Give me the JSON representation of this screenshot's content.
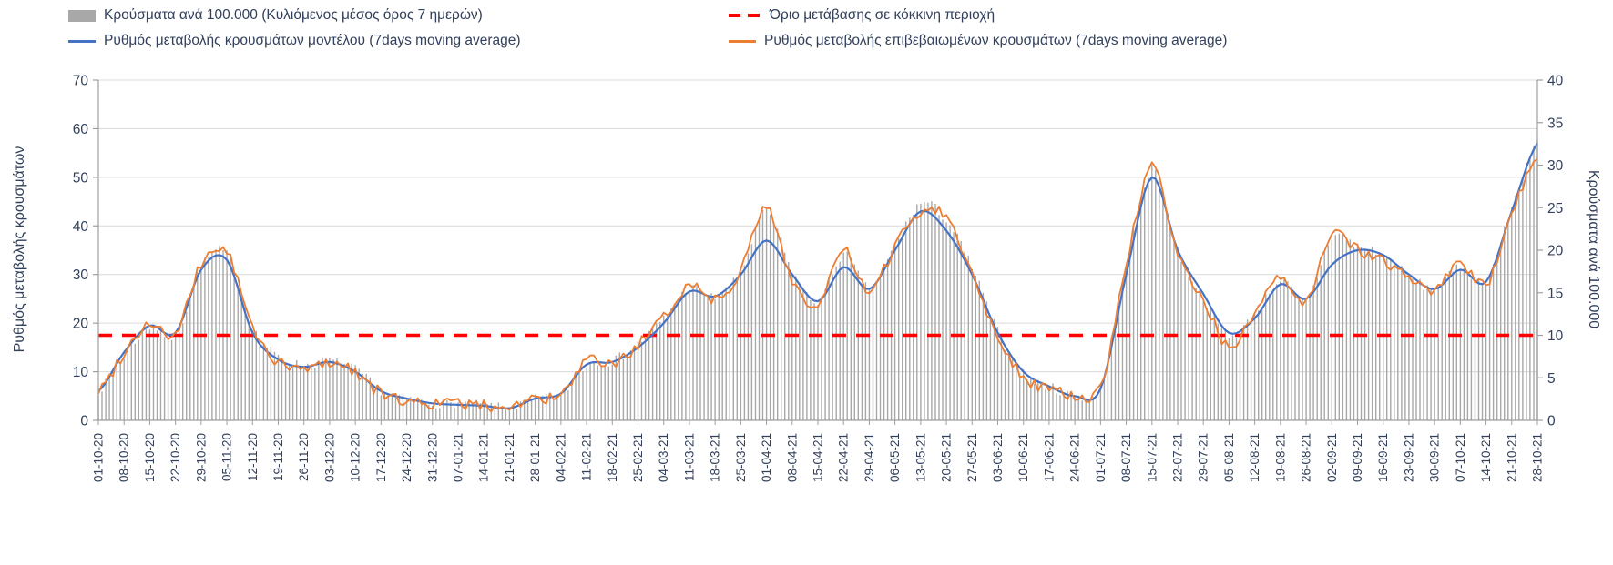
{
  "legend": {
    "cases": "Κρούσματα ανά 100.000 (Κυλιόμενος μέσος όρος 7 ημερών)",
    "threshold": "Όριο μετάβασης σε κόκκινη περιοχή",
    "model": "Ρυθμός μεταβολής κρουσμάτων μοντέλου (7days moving average)",
    "confirmed": "Ρυθμός μεταβολής επιβεβαιωμένων κρουσμάτων (7days moving average)"
  },
  "axes": {
    "left_title": "Ρυθμός μεταβολής κρουσμάτων",
    "right_title": "Κρούσματα ανά 100.000",
    "left_ticks": [
      0,
      10,
      20,
      30,
      40,
      50,
      60,
      70
    ],
    "right_ticks": [
      0,
      5,
      10,
      15,
      20,
      25,
      30,
      35,
      40
    ]
  },
  "colors": {
    "bar": "#a8a8a8",
    "model": "#4472c4",
    "confirmed": "#ed7d31",
    "threshold": "#ff0000",
    "grid": "#d9d9d9",
    "axis": "#9f9f9f",
    "text": "#32405c"
  },
  "chart_data": {
    "type": "line",
    "subtype": "combo-bar-line",
    "x_weekly": [
      "01-10-20",
      "08-10-20",
      "15-10-20",
      "22-10-20",
      "29-10-20",
      "05-11-20",
      "12-11-20",
      "19-11-20",
      "26-11-20",
      "03-12-20",
      "10-12-20",
      "17-12-20",
      "24-12-20",
      "31-12-20",
      "07-01-21",
      "14-01-21",
      "21-01-21",
      "28-01-21",
      "04-02-21",
      "11-02-21",
      "18-02-21",
      "25-02-21",
      "04-03-21",
      "11-03-21",
      "18-03-21",
      "25-03-21",
      "01-04-21",
      "08-04-21",
      "15-04-21",
      "22-04-21",
      "29-04-21",
      "06-05-21",
      "13-05-21",
      "20-05-21",
      "27-05-21",
      "03-06-21",
      "10-06-21",
      "17-06-21",
      "24-06-21",
      "01-07-21",
      "08-07-21",
      "15-07-21",
      "22-07-21",
      "29-07-21",
      "05-08-21",
      "12-08-21",
      "19-08-21",
      "26-08-21",
      "02-09-21",
      "09-09-21",
      "16-09-21",
      "23-09-21",
      "30-09-21",
      "07-10-21",
      "14-10-21",
      "21-10-21",
      "28-10-21"
    ],
    "left_ylim": [
      0,
      70
    ],
    "right_ylim": [
      0,
      40
    ],
    "threshold": {
      "label": "Όριο μετάβασης σε κόκκινη περιοχή",
      "axis": "left",
      "value": 17.5,
      "value_right_axis": 10
    },
    "series": [
      {
        "id": "model",
        "name": "Ρυθμός μεταβολής κρουσμάτων μοντέλου (7days moving average)",
        "type": "line",
        "axis": "left",
        "values": [
          6,
          14,
          19.5,
          18,
          31,
          33,
          18,
          12.5,
          11,
          12,
          10,
          6,
          4.5,
          3.5,
          3.2,
          3,
          2.5,
          4.5,
          5.5,
          11.5,
          12,
          15,
          20,
          26.5,
          25.5,
          30,
          37,
          30,
          24.5,
          31.5,
          27,
          35,
          43,
          39,
          30,
          18,
          10,
          7,
          5,
          6.5,
          30,
          50,
          35,
          26,
          18,
          21,
          28,
          25,
          32,
          35,
          34,
          30,
          27,
          31,
          28.5,
          43,
          57
        ]
      },
      {
        "id": "confirmed",
        "name": "Ρυθμός μεταβολής επιβεβαιωμένων κρουσμάτων (7days moving average)",
        "type": "line",
        "axis": "left",
        "values": [
          6,
          14,
          20,
          17.5,
          32,
          34.5,
          19,
          12,
          10.5,
          12,
          10,
          5.5,
          4,
          3.5,
          3.5,
          3,
          3,
          4.5,
          5,
          12,
          11.5,
          15.5,
          21,
          28,
          25,
          31,
          43.5,
          29,
          23.5,
          35,
          26,
          36,
          43,
          42,
          30,
          17.5,
          9,
          6.5,
          5,
          7,
          32,
          52,
          34,
          25,
          15,
          22,
          29,
          24,
          39,
          35,
          33,
          29,
          27,
          32,
          28,
          43,
          53
        ]
      },
      {
        "id": "cases",
        "name": "Κρούσματα ανά 100.000 (Κυλιόμενος μέσος όρος 7 ημερών)",
        "type": "bar",
        "axis": "right",
        "values": [
          3.5,
          7.5,
          11,
          10,
          18,
          19.5,
          11,
          7.5,
          6.5,
          7,
          6,
          3.5,
          2.5,
          2,
          2,
          1.8,
          1.5,
          2.5,
          3,
          6.5,
          7,
          9,
          12,
          15.5,
          14.5,
          17.5,
          24.5,
          17.5,
          14,
          19.5,
          15.5,
          20.5,
          25.5,
          23.5,
          18,
          10.5,
          5.5,
          4,
          3,
          4,
          18,
          29.5,
          20,
          14.5,
          10,
          12.5,
          16.5,
          14,
          21.5,
          20.5,
          19.5,
          17,
          15.5,
          18,
          16.5,
          25,
          33
        ]
      }
    ],
    "x_resolution_note": "daily bars and daily line points; values above sampled at the weekly tick dates"
  }
}
